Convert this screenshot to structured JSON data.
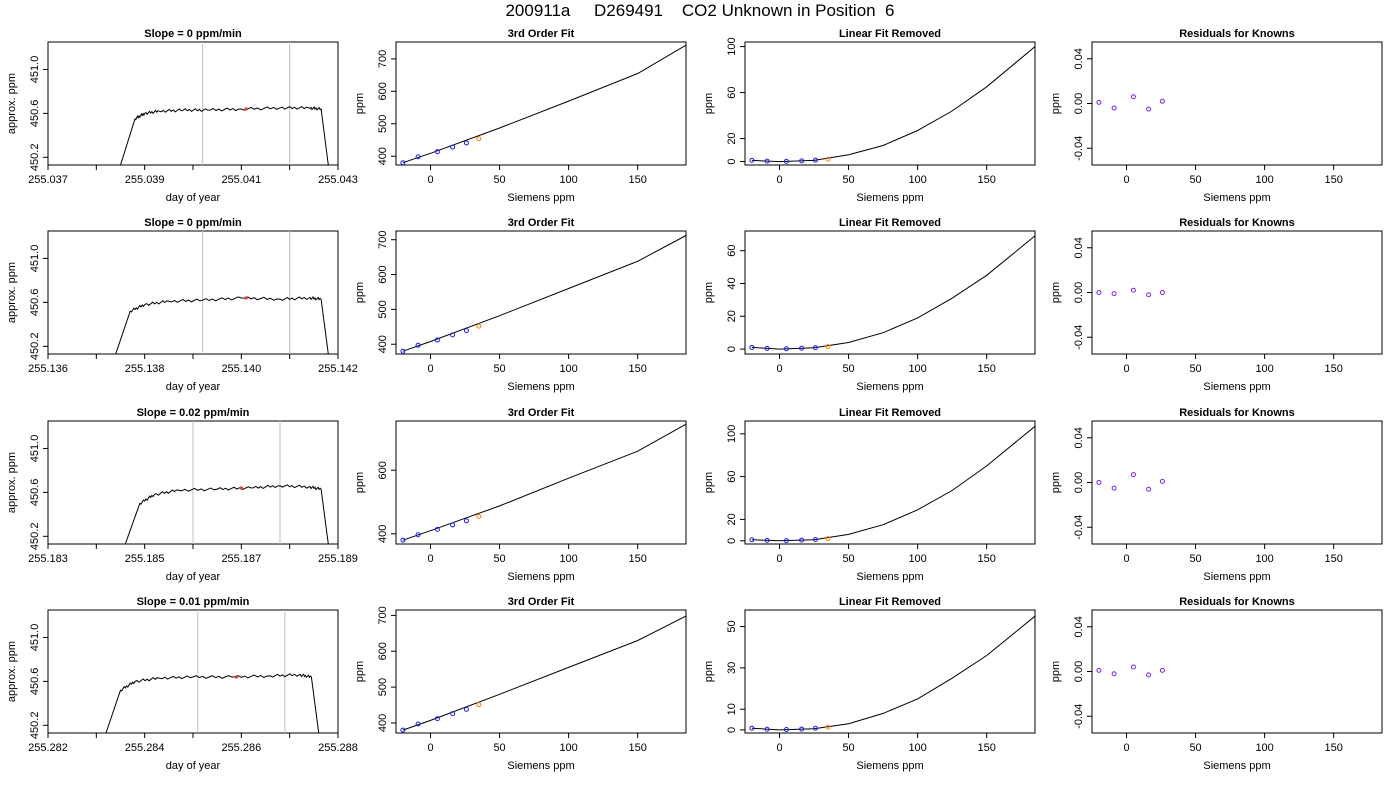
{
  "title": "200911a     D269491    CO2 Unknown in Position  6",
  "colors": {
    "trace": "#000000",
    "marker": "#e8352a",
    "known": "#1a1aff",
    "unknown": "#ff7f00",
    "resid": "#7a1fff",
    "vline": "#c0c0c0"
  },
  "chart_data": [
    {
      "type": "line",
      "title": "Slope =  0  ppm/min",
      "xlabel": "day of year",
      "ylabel": "approx. ppm",
      "xlim": [
        255.037,
        255.043
      ],
      "ylim": [
        450.13,
        451.25
      ],
      "xticks": [
        "255.037",
        "255.039",
        "255.041",
        "255.043"
      ],
      "yticks": [
        "450.2",
        "450.6",
        "451.0"
      ],
      "vlines": [
        255.0402,
        255.042
      ],
      "x": [
        255.0385,
        255.0388,
        255.039,
        255.0393,
        255.0398,
        255.0403,
        255.041,
        255.0418,
        255.0424,
        255.04265,
        255.0428
      ],
      "y": [
        450.13,
        450.55,
        450.6,
        450.62,
        450.63,
        450.63,
        450.64,
        450.65,
        450.65,
        450.64,
        450.13
      ],
      "marker": [
        255.0411,
        450.64
      ]
    },
    {
      "type": "line",
      "title": "3rd Order Fit",
      "xlabel": "Siemens ppm",
      "ylabel": "ppm",
      "xlim": [
        -25,
        185
      ],
      "ylim": [
        373,
        752
      ],
      "xticks": [
        "0",
        "50",
        "100",
        "150"
      ],
      "yticks": [
        "400",
        "500",
        "600",
        "700"
      ],
      "x": [
        -20,
        0,
        50,
        100,
        150,
        185
      ],
      "y": [
        380,
        409,
        487,
        570,
        655,
        742
      ],
      "knowns": [
        [
          -20,
          380
        ],
        [
          -9,
          398
        ],
        [
          5,
          414
        ],
        [
          16,
          428
        ],
        [
          26,
          441
        ]
      ],
      "unknown": [
        35,
        454
      ]
    },
    {
      "type": "line",
      "title": "Linear Fit Removed",
      "xlabel": "Siemens ppm",
      "ylabel": "ppm",
      "xlim": [
        -25,
        185
      ],
      "ylim": [
        -3,
        104
      ],
      "xticks": [
        "0",
        "50",
        "100",
        "150"
      ],
      "yticks": [
        "0",
        "20",
        "60",
        "100"
      ],
      "x": [
        -20,
        0,
        25,
        50,
        75,
        100,
        125,
        150,
        185
      ],
      "y": [
        1,
        0,
        1,
        6,
        14,
        27,
        44,
        65,
        100
      ],
      "knowns": [
        [
          -20,
          1
        ],
        [
          -9,
          0.4
        ],
        [
          5,
          0.2
        ],
        [
          16,
          0.6
        ],
        [
          26,
          1.2
        ]
      ],
      "unknown": [
        35,
        2
      ]
    },
    {
      "type": "scatter",
      "title": "Residuals for Knowns",
      "xlabel": "Siemens ppm",
      "ylabel": "ppm",
      "xlim": [
        -25,
        185
      ],
      "ylim": [
        -0.055,
        0.055
      ],
      "xticks": [
        "0",
        "50",
        "100",
        "150"
      ],
      "yticks": [
        "-0.04",
        "0.00",
        "0.04"
      ],
      "points": [
        [
          -20,
          0.001
        ],
        [
          -9,
          -0.004
        ],
        [
          5,
          0.006
        ],
        [
          16,
          -0.005
        ],
        [
          26,
          0.002
        ]
      ]
    },
    {
      "type": "line",
      "title": "Slope =  0  ppm/min",
      "xlabel": "day of year",
      "ylabel": "approx. ppm",
      "xlim": [
        255.136,
        255.142
      ],
      "ylim": [
        450.13,
        451.25
      ],
      "xticks": [
        "255.136",
        "255.138",
        "255.140",
        "255.142"
      ],
      "yticks": [
        "450.2",
        "450.6",
        "451.0"
      ],
      "vlines": [
        255.1392,
        255.141
      ],
      "x": [
        255.1374,
        255.1377,
        255.138,
        255.1385,
        255.1392,
        255.14,
        255.1408,
        255.1414,
        255.14165,
        255.1418
      ],
      "y": [
        450.13,
        450.52,
        450.58,
        450.61,
        450.62,
        450.64,
        450.63,
        450.64,
        450.63,
        450.13
      ],
      "marker": [
        255.1401,
        450.64
      ]
    },
    {
      "type": "line",
      "title": "3rd Order Fit",
      "xlabel": "Siemens ppm",
      "ylabel": "ppm",
      "xlim": [
        -25,
        185
      ],
      "ylim": [
        372,
        725
      ],
      "xticks": [
        "0",
        "50",
        "100",
        "150"
      ],
      "yticks": [
        "400",
        "500",
        "600",
        "700"
      ],
      "x": [
        -20,
        0,
        50,
        100,
        150,
        185
      ],
      "y": [
        380,
        408,
        482,
        560,
        638,
        712
      ],
      "knowns": [
        [
          -20,
          380
        ],
        [
          -9,
          397
        ],
        [
          5,
          412
        ],
        [
          16,
          427
        ],
        [
          26,
          439
        ]
      ],
      "unknown": [
        35,
        452
      ]
    },
    {
      "type": "line",
      "title": "Linear Fit Removed",
      "xlabel": "Siemens ppm",
      "ylabel": "ppm",
      "xlim": [
        -25,
        185
      ],
      "ylim": [
        -3,
        72
      ],
      "xticks": [
        "0",
        "50",
        "100",
        "150"
      ],
      "yticks": [
        "0",
        "20",
        "40",
        "60"
      ],
      "x": [
        -20,
        0,
        25,
        50,
        75,
        100,
        125,
        150,
        185
      ],
      "y": [
        1,
        0,
        0.8,
        4,
        10,
        19,
        31,
        45,
        69
      ],
      "knowns": [
        [
          -20,
          1
        ],
        [
          -9,
          0.4
        ],
        [
          5,
          0.2
        ],
        [
          16,
          0.5
        ],
        [
          26,
          0.9
        ]
      ],
      "unknown": [
        35,
        1.5
      ]
    },
    {
      "type": "scatter",
      "title": "Residuals for Knowns",
      "xlabel": "Siemens ppm",
      "ylabel": "ppm",
      "xlim": [
        -25,
        185
      ],
      "ylim": [
        -0.055,
        0.055
      ],
      "xticks": [
        "0",
        "50",
        "100",
        "150"
      ],
      "yticks": [
        "-0.04",
        "0.00",
        "0.04"
      ],
      "points": [
        [
          -20,
          0.0
        ],
        [
          -9,
          -0.001
        ],
        [
          5,
          0.002
        ],
        [
          16,
          -0.002
        ],
        [
          26,
          0.0
        ]
      ]
    },
    {
      "type": "line",
      "title": "Slope =  0.02  ppm/min",
      "xlabel": "day of year",
      "ylabel": "approx. ppm",
      "xlim": [
        255.183,
        255.189
      ],
      "ylim": [
        450.13,
        451.25
      ],
      "xticks": [
        "255.183",
        "255.185",
        "255.187",
        "255.189"
      ],
      "yticks": [
        "450.2",
        "450.6",
        "451.0"
      ],
      "vlines": [
        255.186,
        255.1878
      ],
      "x": [
        255.1846,
        255.1849,
        255.1852,
        255.1857,
        255.1865,
        255.1872,
        255.1878,
        255.1884,
        255.18865,
        255.1888
      ],
      "y": [
        450.13,
        450.5,
        450.58,
        450.62,
        450.63,
        450.64,
        450.66,
        450.65,
        450.63,
        450.13
      ],
      "marker": [
        255.187,
        450.64
      ]
    },
    {
      "type": "line",
      "title": "3rd Order Fit",
      "xlabel": "Siemens ppm",
      "ylabel": "ppm",
      "xlim": [
        -25,
        185
      ],
      "ylim": [
        368,
        755
      ],
      "xticks": [
        "0",
        "50",
        "100",
        "150"
      ],
      "yticks": [
        "400",
        "600"
      ],
      "x": [
        -20,
        0,
        50,
        100,
        150,
        185
      ],
      "y": [
        380,
        410,
        488,
        575,
        660,
        745
      ],
      "knowns": [
        [
          -20,
          380
        ],
        [
          -9,
          397
        ],
        [
          5,
          414
        ],
        [
          16,
          428
        ],
        [
          26,
          441
        ]
      ],
      "unknown": [
        35,
        455
      ]
    },
    {
      "type": "line",
      "title": "Linear Fit Removed",
      "xlabel": "Siemens ppm",
      "ylabel": "ppm",
      "xlim": [
        -25,
        185
      ],
      "ylim": [
        -3,
        112
      ],
      "xticks": [
        "0",
        "50",
        "100",
        "150"
      ],
      "yticks": [
        "0",
        "20",
        "60",
        "100"
      ],
      "x": [
        -20,
        0,
        25,
        50,
        75,
        100,
        125,
        150,
        185
      ],
      "y": [
        1,
        0,
        1,
        6,
        15,
        29,
        47,
        70,
        107
      ],
      "knowns": [
        [
          -20,
          1
        ],
        [
          -9,
          0.4
        ],
        [
          5,
          0.2
        ],
        [
          16,
          0.6
        ],
        [
          26,
          1.2
        ]
      ],
      "unknown": [
        35,
        2
      ]
    },
    {
      "type": "scatter",
      "title": "Residuals for Knowns",
      "xlabel": "Siemens ppm",
      "ylabel": "ppm",
      "xlim": [
        -25,
        185
      ],
      "ylim": [
        -0.055,
        0.055
      ],
      "xticks": [
        "0",
        "50",
        "100",
        "150"
      ],
      "yticks": [
        "-0.04",
        "0.00",
        "0.04"
      ],
      "points": [
        [
          -20,
          0.0
        ],
        [
          -9,
          -0.005
        ],
        [
          5,
          0.007
        ],
        [
          16,
          -0.006
        ],
        [
          26,
          0.001
        ]
      ]
    },
    {
      "type": "line",
      "title": "Slope =  0.01  ppm/min",
      "xlabel": "day of year",
      "ylabel": "approx. ppm",
      "xlim": [
        255.282,
        255.288
      ],
      "ylim": [
        450.13,
        451.25
      ],
      "xticks": [
        "255.282",
        "255.284",
        "255.286",
        "255.288"
      ],
      "yticks": [
        "450.2",
        "450.6",
        "451.0"
      ],
      "vlines": [
        255.2851,
        255.2869
      ],
      "x": [
        255.2832,
        255.2835,
        255.2838,
        255.2843,
        255.285,
        255.2858,
        255.2866,
        255.2872,
        255.28745,
        255.2876
      ],
      "y": [
        450.13,
        450.52,
        450.6,
        450.63,
        450.64,
        450.64,
        450.65,
        450.66,
        450.64,
        450.13
      ],
      "marker": [
        255.2859,
        450.64
      ]
    },
    {
      "type": "line",
      "title": "3rd Order Fit",
      "xlabel": "Siemens ppm",
      "ylabel": "ppm",
      "xlim": [
        -25,
        185
      ],
      "ylim": [
        372,
        715
      ],
      "xticks": [
        "0",
        "50",
        "100",
        "150"
      ],
      "yticks": [
        "400",
        "500",
        "600",
        "700"
      ],
      "x": [
        -20,
        0,
        50,
        100,
        150,
        185
      ],
      "y": [
        380,
        407,
        480,
        555,
        630,
        698
      ],
      "knowns": [
        [
          -20,
          380
        ],
        [
          -9,
          397
        ],
        [
          5,
          412
        ],
        [
          16,
          426
        ],
        [
          26,
          438
        ]
      ],
      "unknown": [
        35,
        451
      ]
    },
    {
      "type": "line",
      "title": "Linear Fit Removed",
      "xlabel": "Siemens ppm",
      "ylabel": "ppm",
      "xlim": [
        -25,
        185
      ],
      "ylim": [
        -1.5,
        58
      ],
      "xticks": [
        "0",
        "50",
        "100",
        "150"
      ],
      "yticks": [
        "0",
        "10",
        "30",
        "50"
      ],
      "x": [
        -20,
        0,
        25,
        50,
        75,
        100,
        125,
        150,
        185
      ],
      "y": [
        0.8,
        0,
        0.6,
        3,
        8,
        15,
        25,
        36,
        55
      ],
      "knowns": [
        [
          -20,
          0.8
        ],
        [
          -9,
          0.3
        ],
        [
          5,
          0.2
        ],
        [
          16,
          0.4
        ],
        [
          26,
          0.8
        ]
      ],
      "unknown": [
        35,
        1.3
      ]
    },
    {
      "type": "scatter",
      "title": "Residuals for Knowns",
      "xlabel": "Siemens ppm",
      "ylabel": "ppm",
      "xlim": [
        -25,
        185
      ],
      "ylim": [
        -0.055,
        0.055
      ],
      "xticks": [
        "0",
        "50",
        "100",
        "150"
      ],
      "yticks": [
        "-0.04",
        "0.00",
        "0.04"
      ],
      "points": [
        [
          -20,
          0.001
        ],
        [
          -9,
          -0.002
        ],
        [
          5,
          0.004
        ],
        [
          16,
          -0.003
        ],
        [
          26,
          0.001
        ]
      ]
    }
  ]
}
